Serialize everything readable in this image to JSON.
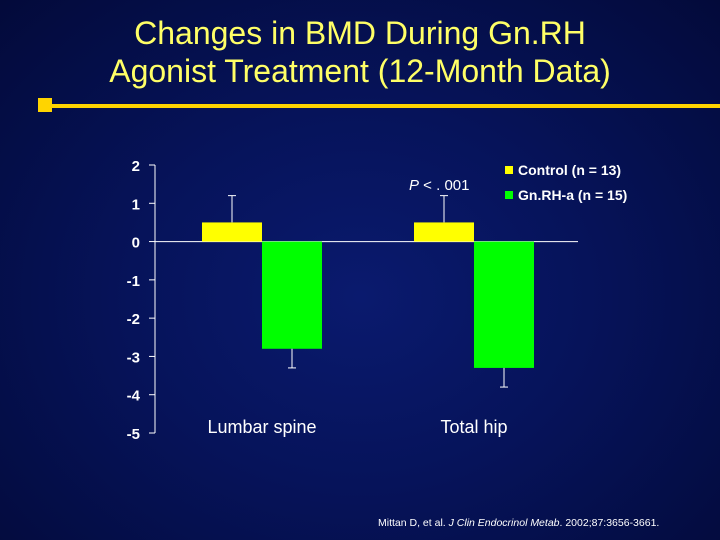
{
  "slide": {
    "title_line1": "Changes in BMD During Gn.RH",
    "title_line2": "Agonist Treatment (12-Month Data)",
    "source_authors": "Mittan D, et al. ",
    "source_journal": "J Clin Endocrinol Metab",
    "source_rest": ". 2002;87:3656-3661."
  },
  "colors": {
    "background": "#06135a",
    "title": "#ffff66",
    "accent_rule": "#ffd400",
    "control": "#ffff00",
    "gnrh": "#00ff00"
  },
  "chart_data": {
    "type": "bar",
    "categories": [
      "Lumbar spine",
      "Total hip"
    ],
    "series": [
      {
        "name": "Control (n = 13)",
        "values": [
          0.5,
          0.5
        ],
        "error": [
          0.7,
          0.7
        ]
      },
      {
        "name": "Gn.RH-a (n = 15)",
        "values": [
          -2.8,
          -3.3
        ],
        "error": [
          0.5,
          0.5
        ]
      }
    ],
    "yticks": [
      2,
      1,
      0,
      -1,
      -2,
      -3,
      -4,
      -5
    ],
    "ylim": [
      -5,
      2
    ],
    "annotation": "P < . 001",
    "legend_position": "top-right",
    "grid": false
  }
}
